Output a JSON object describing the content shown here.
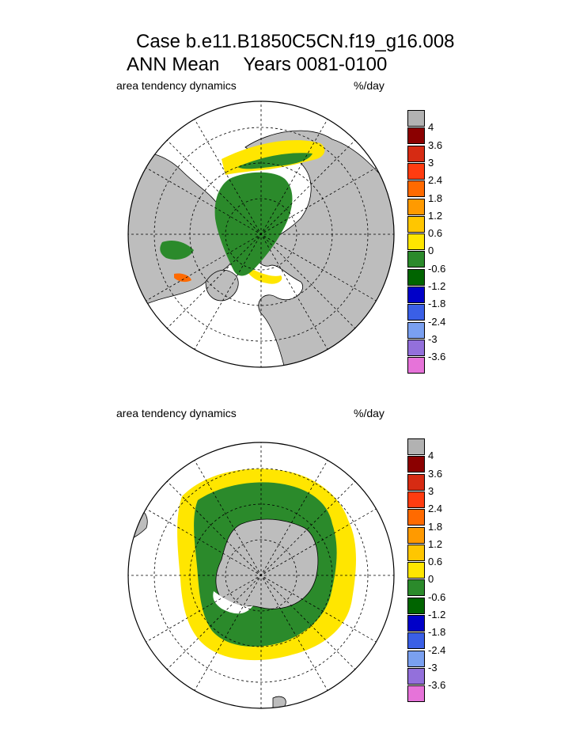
{
  "title": {
    "line1": "Case b.e11.B1850C5CN.f19_g16.008",
    "line2_left": "ANN Mean",
    "line2_right": "Years 0081-0100"
  },
  "colorbar": {
    "colors": [
      "#b2b2b2",
      "#8b0000",
      "#d62b13",
      "#ff3c10",
      "#ff6a00",
      "#ff9a00",
      "#ffc600",
      "#ffe600",
      "#2b8a2b",
      "#006400",
      "#0000c8",
      "#3a5fe6",
      "#7aa0f0",
      "#9370db",
      "#e673d9"
    ],
    "labels": [
      "4",
      "3.6",
      "3",
      "2.4",
      "1.8",
      "1.2",
      "0.6",
      "0",
      "-0.6",
      "-1.2",
      "-1.8",
      "-2.4",
      "-3",
      "-3.6"
    ]
  },
  "panels": [
    {
      "id": "north",
      "left_label": "area tendency dynamics",
      "right_label": "%/day",
      "hemisphere": "north"
    },
    {
      "id": "south",
      "left_label": "area tendency dynamics",
      "right_label": "%/day",
      "hemisphere": "south"
    }
  ]
}
